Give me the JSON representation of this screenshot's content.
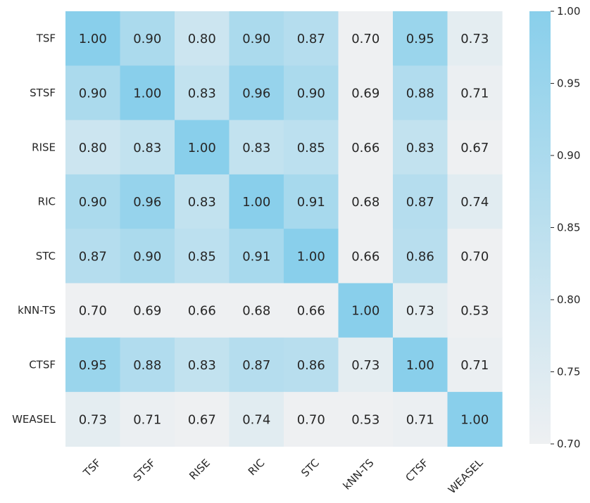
{
  "chart_data": {
    "type": "heatmap",
    "rows": [
      "TSF",
      "STSF",
      "RISE",
      "RIC",
      "STC",
      "kNN-TS",
      "CTSF",
      "WEASEL"
    ],
    "columns": [
      "TSF",
      "STSF",
      "RISE",
      "RIC",
      "STC",
      "kNN-TS",
      "CTSF",
      "WEASEL"
    ],
    "values": [
      [
        1.0,
        0.9,
        0.8,
        0.9,
        0.87,
        0.7,
        0.95,
        0.73
      ],
      [
        0.9,
        1.0,
        0.83,
        0.96,
        0.9,
        0.69,
        0.88,
        0.71
      ],
      [
        0.8,
        0.83,
        1.0,
        0.83,
        0.85,
        0.66,
        0.83,
        0.67
      ],
      [
        0.9,
        0.96,
        0.83,
        1.0,
        0.91,
        0.68,
        0.87,
        0.74
      ],
      [
        0.87,
        0.9,
        0.85,
        0.91,
        1.0,
        0.66,
        0.86,
        0.7
      ],
      [
        0.7,
        0.69,
        0.66,
        0.68,
        0.66,
        1.0,
        0.73,
        0.53
      ],
      [
        0.95,
        0.88,
        0.83,
        0.87,
        0.86,
        0.73,
        1.0,
        0.71
      ],
      [
        0.73,
        0.71,
        0.67,
        0.74,
        0.7,
        0.53,
        0.71,
        1.0
      ]
    ],
    "value_format_decimals": 2,
    "color_range": [
      0.7,
      1.0
    ],
    "colormap": {
      "low": "#eef0f2",
      "high": "#89cfeb"
    },
    "colorbar": {
      "ticks": [
        0.7,
        0.75,
        0.8,
        0.85,
        0.9,
        0.95,
        1.0
      ],
      "tick_labels": [
        "0.70",
        "0.75",
        "0.80",
        "0.85",
        "0.90",
        "0.95",
        "1.00"
      ],
      "placement": "right"
    },
    "x_tick_rotation_deg": 45,
    "grid": false
  }
}
